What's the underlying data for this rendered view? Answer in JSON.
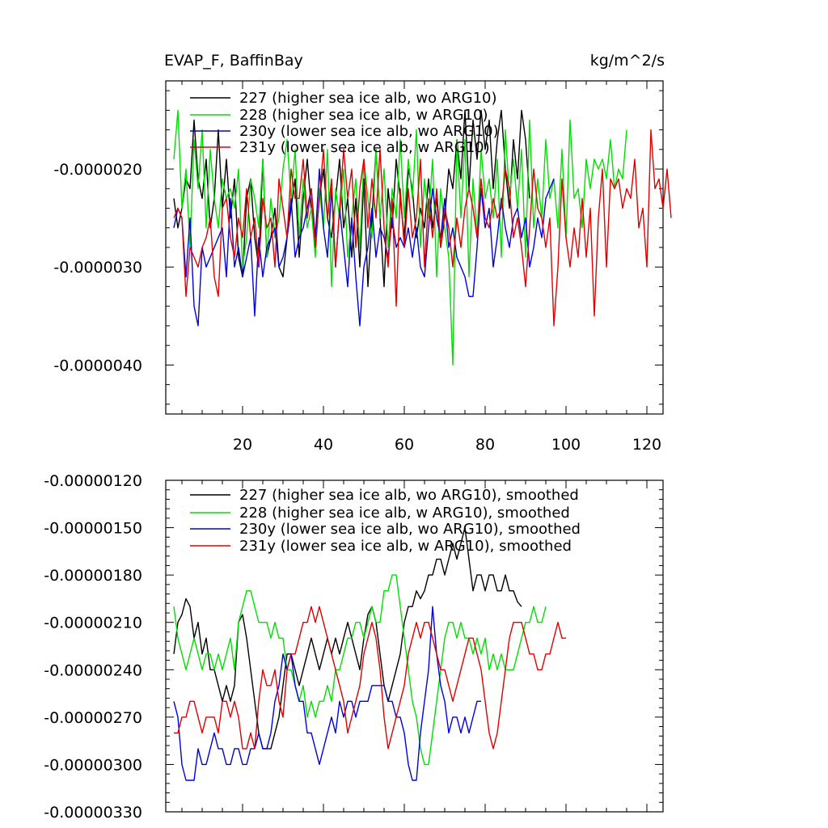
{
  "chart_data": [
    {
      "type": "line",
      "title_left": "EVAP_F, BaffinBay",
      "title_right": "kg/m^2/s",
      "xlim": [
        1,
        124
      ],
      "ylim": [
        -4.5e-06,
        -1.1e-06
      ],
      "x_ticks": [
        20,
        40,
        60,
        80,
        100,
        120
      ],
      "x_tick_labels": [
        "20",
        "40",
        "60",
        "80",
        "100",
        "120"
      ],
      "y_ticks": [
        -2e-06,
        -3e-06,
        -4e-06
      ],
      "y_tick_labels": [
        "-0.0000020",
        "-0.0000030",
        "-0.0000040"
      ],
      "legend": [
        "227 (higher sea ice alb, wo ARG10)",
        "228 (higher sea ice alb, w ARG10)",
        "230y (lower sea ice alb, wo ARG10)",
        "231y (lower sea ice alb, w ARG10)"
      ],
      "colors": [
        "#000000",
        "#00e000",
        "#0000e0",
        "#e00000"
      ],
      "series": [
        {
          "name": "227",
          "x_start": 3,
          "values": [
            -2.3e-06,
            -2.6e-06,
            -2.4e-06,
            -2.1e-06,
            -2.2e-06,
            -1.5e-06,
            -2.1e-06,
            -2.3e-06,
            -1.9e-06,
            -2.6e-06,
            -2.3e-06,
            -1.6e-06,
            -2.4e-06,
            -1.9e-06,
            -2.5e-06,
            -2.1e-06,
            -2.9e-06,
            -3.1e-06,
            -2.3e-06,
            -2.1e-06,
            -2.7e-06,
            -3e-06,
            -1.9e-06,
            -2.9e-06,
            -2.7e-06,
            -2.4e-06,
            -3e-06,
            -3.1e-06,
            -2.7e-06,
            -2.4e-06,
            -2.1e-06,
            -2.9e-06,
            -2.3e-06,
            -1.9e-06,
            -2.4e-06,
            -2.7e-06,
            -2.3e-06,
            -2e-06,
            -2.5e-06,
            -2.7e-06,
            -2.3e-06,
            -1.9e-06,
            -2.6e-06,
            -2.3e-06,
            -2.9e-06,
            -2.3e-06,
            -3e-06,
            -2.1e-06,
            -3.2e-06,
            -2.5e-06,
            -1.8e-06,
            -2.5e-06,
            -3.2e-06,
            -2.2e-06,
            -2.6e-06,
            -1.9e-06,
            -2.3e-06,
            -2.7e-06,
            -2e-06,
            -2.2e-06,
            -2.7e-06,
            -2.4e-06,
            -2.6e-06,
            -2.1e-06,
            -2.6e-06,
            -2.3e-06,
            -2.8e-06,
            -2.5e-06,
            -2e-06,
            -2.2e-06,
            -1.7e-06,
            -2.1e-06,
            -1.4e-06,
            -2.2e-06,
            -1.5e-06,
            -1.9e-06,
            -1.4e-06,
            -1.8e-06,
            -1.5e-06,
            -2.2e-06,
            -1.7e-06,
            -1.4e-06,
            -2e-06,
            -2.4e-06,
            -1.7e-06,
            -2.1e-06,
            -1.4e-06,
            -1.7e-06,
            -2.3e-06
          ]
        },
        {
          "name": "228",
          "x_start": 3,
          "values": [
            -1.9e-06,
            -1.4e-06,
            -2.4e-06,
            -2e-06,
            -2.8e-06,
            -1.7e-06,
            -2.2e-06,
            -1.6e-06,
            -2.6e-06,
            -1.8e-06,
            -2.3e-06,
            -2.6e-06,
            -2.1e-06,
            -2.3e-06,
            -2.2e-06,
            -2.4e-06,
            -2e-06,
            -3e-06,
            -2.7e-06,
            -2.1e-06,
            -2.3e-06,
            -2.6e-06,
            -1.9e-06,
            -2.9e-06,
            -2.3e-06,
            -2.7e-06,
            -2.5e-06,
            -2e-06,
            -1.7e-06,
            -2.3e-06,
            -1.8e-06,
            -2.7e-06,
            -2.1e-06,
            -2.6e-06,
            -2.4e-06,
            -2.9e-06,
            -2.2e-06,
            -2.6e-06,
            -1.8e-06,
            -3.2e-06,
            -2.2e-06,
            -2.5e-06,
            -2e-06,
            -2.9e-06,
            -2.5e-06,
            -2.1e-06,
            -2.8e-06,
            -1.9e-06,
            -2.3e-06,
            -2.7e-06,
            -1.8e-06,
            -2.5e-06,
            -2e-06,
            -2.8e-06,
            -2.2e-06,
            -2.5e-06,
            -1.7e-06,
            -2.5e-06,
            -1.9e-06,
            -2.3e-06,
            -1.6e-06,
            -2.8e-06,
            -2.1e-06,
            -2.5e-06,
            -1.9e-06,
            -3.1e-06,
            -2.2e-06,
            -2.6e-06,
            -2.9e-06,
            -4e-06,
            -1.7e-06,
            -2.5e-06,
            -1.7e-06,
            -3.1e-06,
            -2.1e-06,
            -2.7e-06,
            -1.8e-06,
            -2.3e-06,
            -2.1e-06,
            -2.5e-06,
            -1.9e-06,
            -2.9e-06,
            -1.6e-06,
            -2.3e-06,
            -1.9e-06,
            -2.4e-06,
            -1.8e-06,
            -2.9e-06,
            -1.5e-06,
            -2.6e-06,
            -2.1e-06,
            -2.5e-06,
            -1.7e-06,
            -2.3e-06,
            -2.1e-06,
            -2.6e-06,
            -1.8e-06,
            -2.7e-06,
            -1.5e-06,
            -2.3e-06,
            -2.2e-06,
            -2.6e-06,
            -1.9e-06,
            -2.2e-06,
            -1.9e-06,
            -2e-06,
            -1.9e-06,
            -2.1e-06,
            -1.7e-06,
            -2.2e-06,
            -2e-06,
            -2.1e-06,
            -1.6e-06
          ]
        },
        {
          "name": "230y",
          "x_start": 3,
          "values": [
            -2.6e-06,
            -2.4e-06,
            -2.5e-06,
            -3.1e-06,
            -2.5e-06,
            -3.4e-06,
            -3.6e-06,
            -2.8e-06,
            -3e-06,
            -2.9e-06,
            -2.8e-06,
            -2.7e-06,
            -2.6e-06,
            -3.1e-06,
            -2.3e-06,
            -3e-06,
            -2.8e-06,
            -3.1e-06,
            -2.9e-06,
            -2.7e-06,
            -3.5e-06,
            -2.7e-06,
            -3.1e-06,
            -2.8e-06,
            -2.7e-06,
            -2.6e-06,
            -3e-06,
            -2.9e-06,
            -2.7e-06,
            -2.3e-06,
            -2.9e-06,
            -2.7e-06,
            -2.6e-06,
            -2.4e-06,
            -2.2e-06,
            -2.7e-06,
            -2e-06,
            -2.6e-06,
            -2.9e-06,
            -2.2e-06,
            -3e-06,
            -2.4e-06,
            -2.8e-06,
            -3.2e-06,
            -2.5e-06,
            -3.1e-06,
            -3.6e-06,
            -3e-06,
            -2.8e-06,
            -2.4e-06,
            -2.9e-06,
            -2.6e-06,
            -2.7e-06,
            -2.9e-06,
            -2.5e-06,
            -2.8e-06,
            -2.7e-06,
            -2.8e-06,
            -2.6e-06,
            -2.9e-06,
            -2.6e-06,
            -3e-06,
            -3.1e-06,
            -2.6e-06,
            -2.2e-06,
            -2.5e-06,
            -2.7e-06,
            -2.3e-06,
            -2.8e-06,
            -2.6e-06,
            -2.9e-06,
            -3e-06,
            -3.1e-06,
            -3.3e-06,
            -3.3e-06,
            -2.8e-06,
            -2.2e-06,
            -2.6e-06,
            -2.4e-06,
            -3e-06,
            -2.7e-06,
            -2.3e-06,
            -2.6e-06,
            -2.8e-06,
            -2.5e-06,
            -2.4e-06,
            -2.7e-06,
            -2.5e-06,
            -3e-06,
            -2.8e-06,
            -2.5e-06,
            -2.7e-06,
            -2.3e-06,
            -2.2e-06,
            -2.1e-06
          ]
        },
        {
          "name": "231y",
          "x_start": 3,
          "values": [
            -2.5e-06,
            -2.4e-06,
            -2.5e-06,
            -3.3e-06,
            -2.8e-06,
            -2.9e-06,
            -3e-06,
            -2.8e-06,
            -2.7e-06,
            -2.5e-06,
            -3.1e-06,
            -3.3e-06,
            -2.4e-06,
            -2.3e-06,
            -2.7e-06,
            -2.9e-06,
            -2.5e-06,
            -2.7e-06,
            -2.2e-06,
            -2.7e-06,
            -2.5e-06,
            -3e-06,
            -2.3e-06,
            -2.6e-06,
            -2.5e-06,
            -3e-06,
            -2.1e-06,
            -2.4e-06,
            -2.7e-06,
            -2e-06,
            -2.3e-06,
            -2.3e-06,
            -1.9e-06,
            -2.5e-06,
            -2.2e-06,
            -2.8e-06,
            -2.3e-06,
            -1.8e-06,
            -2.5e-06,
            -2.1e-06,
            -3e-06,
            -2.4e-06,
            -1.8e-06,
            -2.3e-06,
            -2e-06,
            -2.8e-06,
            -2.2e-06,
            -1.9e-06,
            -2.6e-06,
            -2.1e-06,
            -2.5e-06,
            -1.8e-06,
            -2.6e-06,
            -3e-06,
            -2.3e-06,
            -3.4e-06,
            -2.2e-06,
            -2.8e-06,
            -2.2e-06,
            -2.7e-06,
            -2.5e-06,
            -1.9e-06,
            -3e-06,
            -2.3e-06,
            -2.7e-06,
            -2.2e-06,
            -2.8e-06,
            -2.4e-06,
            -2.6e-06,
            -3e-06,
            -2.5e-06,
            -2.8e-06,
            -2.4e-06,
            -2.2e-06,
            -2.4e-06,
            -2.7e-06,
            -2.1e-06,
            -2.5e-06,
            -2.6e-06,
            -2.3e-06,
            -2.5e-06,
            -2.4e-06,
            -2e-06,
            -2.2e-06,
            -2.7e-06,
            -2.5e-06,
            -2.8e-06,
            -3.2e-06,
            -2.6e-06,
            -2e-06,
            -2.4e-06,
            -2.5e-06,
            -2.8e-06,
            -2.5e-06,
            -3.6e-06,
            -3e-06,
            -2.1e-06,
            -2.7e-06,
            -3e-06,
            -2.6e-06,
            -2.9e-06,
            -2.3e-06,
            -2.9e-06,
            -2.4e-06,
            -3.5e-06,
            -2.5e-06,
            -2e-06,
            -3e-06,
            -2.1e-06,
            -2.2e-06,
            -2.1e-06,
            -2.4e-06,
            -2.2e-06,
            -2.3e-06,
            -1.9e-06,
            -2.6e-06,
            -2.4e-06,
            -3e-06,
            -1.6e-06,
            -2.2e-06,
            -2.1e-06,
            -2.4e-06,
            -2e-06,
            -2.5e-06
          ]
        }
      ]
    },
    {
      "type": "line",
      "xlim": [
        1,
        124
      ],
      "ylim": [
        -3.3e-06,
        -1.2e-06
      ],
      "x_ticks": [
        20,
        40,
        60,
        80,
        100,
        120
      ],
      "y_ticks": [
        -1.2e-06,
        -1.5e-06,
        -1.8e-06,
        -2.1e-06,
        -2.4e-06,
        -2.7e-06,
        -3e-06,
        -3.3e-06
      ],
      "y_tick_labels": [
        "-0.00000120",
        "-0.00000150",
        "-0.00000180",
        "-0.00000210",
        "-0.00000240",
        "-0.00000270",
        "-0.00000300",
        "-0.00000330"
      ],
      "legend": [
        "227 (higher sea ice alb, wo ARG10), smoothed",
        "228 (higher sea ice alb, w ARG10), smoothed",
        "230y (lower sea ice alb, wo ARG10), smoothed",
        "231y (lower sea ice alb, w ARG10), smoothed"
      ],
      "colors": [
        "#000000",
        "#00e000",
        "#0000e0",
        "#e00000"
      ],
      "series": [
        {
          "name": "227 smoothed",
          "x_start": 3,
          "values": [
            -2.3e-06,
            -2.1e-06,
            -2.05e-06,
            -1.95e-06,
            -2e-06,
            -2.2e-06,
            -2.1e-06,
            -2.3e-06,
            -2.2e-06,
            -2.4e-06,
            -2.4e-06,
            -2.5e-06,
            -2.6e-06,
            -2.5e-06,
            -2.6e-06,
            -2.5e-06,
            -2.1e-06,
            -2.05e-06,
            -2.2e-06,
            -2.4e-06,
            -2.6e-06,
            -2.8e-06,
            -2.9e-06,
            -2.9e-06,
            -2.9e-06,
            -2.8e-06,
            -2.7e-06,
            -2.5e-06,
            -2.3e-06,
            -2.3e-06,
            -2.4e-06,
            -2.5e-06,
            -2.4e-06,
            -2.3e-06,
            -2.2e-06,
            -2.3e-06,
            -2.4e-06,
            -2.3e-06,
            -2.2e-06,
            -2.3e-06,
            -2.2e-06,
            -2.3e-06,
            -2.2e-06,
            -2.1e-06,
            -2.2e-06,
            -2.3e-06,
            -2.4e-06,
            -2.2e-06,
            -2.05e-06,
            -2e-06,
            -2.1e-06,
            -2.3e-06,
            -2.5e-06,
            -2.6e-06,
            -2.5e-06,
            -2.4e-06,
            -2.3e-06,
            -2.1e-06,
            -2e-06,
            -2e-06,
            -1.9e-06,
            -1.95e-06,
            -1.9e-06,
            -1.8e-06,
            -1.8e-06,
            -1.7e-06,
            -1.7e-06,
            -1.8e-06,
            -1.7e-06,
            -1.6e-06,
            -1.7e-06,
            -1.6e-06,
            -1.5e-06,
            -1.7e-06,
            -1.9e-06,
            -1.8e-06,
            -1.8e-06,
            -1.9e-06,
            -1.8e-06,
            -1.8e-06,
            -1.9e-06,
            -1.9e-06,
            -1.8e-06,
            -1.9e-06,
            -1.9e-06,
            -1.97e-06,
            -2e-06
          ]
        },
        {
          "name": "228 smoothed",
          "x_start": 3,
          "values": [
            -2e-06,
            -2.2e-06,
            -2.3e-06,
            -2.4e-06,
            -2.3e-06,
            -2.2e-06,
            -2.3e-06,
            -2.4e-06,
            -2.3e-06,
            -2.3e-06,
            -2.4e-06,
            -2.3e-06,
            -2.4e-06,
            -2.3e-06,
            -2.2e-06,
            -2.4e-06,
            -2.1e-06,
            -2e-06,
            -1.9e-06,
            -1.9e-06,
            -2e-06,
            -2.1e-06,
            -2.1e-06,
            -2.1e-06,
            -2.2e-06,
            -2.1e-06,
            -2.2e-06,
            -2.2e-06,
            -2.4e-06,
            -2.4e-06,
            -2.5e-06,
            -2.6e-06,
            -2.5e-06,
            -2.7e-06,
            -2.6e-06,
            -2.7e-06,
            -2.6e-06,
            -2.6e-06,
            -2.5e-06,
            -2.6e-06,
            -2.4e-06,
            -2.4e-06,
            -2.3e-06,
            -2.2e-06,
            -2.2e-06,
            -2.1e-06,
            -2.1e-06,
            -2.2e-06,
            -2.1e-06,
            -2e-06,
            -2.1e-06,
            -2.1e-06,
            -1.9e-06,
            -1.9e-06,
            -1.8e-06,
            -1.8e-06,
            -2e-06,
            -2.2e-06,
            -2.4e-06,
            -2.6e-06,
            -2.7e-06,
            -2.9e-06,
            -3e-06,
            -3e-06,
            -2.8e-06,
            -2.6e-06,
            -2.4e-06,
            -2.2e-06,
            -2.1e-06,
            -2.1e-06,
            -2.2e-06,
            -2.1e-06,
            -2.2e-06,
            -2.2e-06,
            -2.3e-06,
            -2.2e-06,
            -2.3e-06,
            -2.2e-06,
            -2.4e-06,
            -2.3e-06,
            -2.4e-06,
            -2.3e-06,
            -2.4e-06,
            -2.4e-06,
            -2.4e-06,
            -2.3e-06,
            -2.2e-06,
            -2.1e-06,
            -2.1e-06,
            -2e-06,
            -2.1e-06,
            -2.1e-06,
            -2e-06
          ]
        },
        {
          "name": "230y smoothed",
          "x_start": 3,
          "values": [
            -2.6e-06,
            -2.7e-06,
            -3e-06,
            -3.1e-06,
            -3.1e-06,
            -3.1e-06,
            -2.9e-06,
            -3e-06,
            -3e-06,
            -2.9e-06,
            -2.8e-06,
            -2.9e-06,
            -2.9e-06,
            -3e-06,
            -3e-06,
            -2.9e-06,
            -2.9e-06,
            -3e-06,
            -3e-06,
            -2.9e-06,
            -2.9e-06,
            -2.8e-06,
            -2.9e-06,
            -2.9e-06,
            -2.8e-06,
            -2.6e-06,
            -2.5e-06,
            -2.3e-06,
            -2.4e-06,
            -2.3e-06,
            -2.5e-06,
            -2.6e-06,
            -2.6e-06,
            -2.8e-06,
            -2.8e-06,
            -2.9e-06,
            -3e-06,
            -2.9e-06,
            -2.8e-06,
            -2.7e-06,
            -2.8e-06,
            -2.6e-06,
            -2.7e-06,
            -2.6e-06,
            -2.6e-06,
            -2.7e-06,
            -2.6e-06,
            -2.6e-06,
            -2.6e-06,
            -2.5e-06,
            -2.5e-06,
            -2.5e-06,
            -2.5e-06,
            -2.6e-06,
            -2.6e-06,
            -2.7e-06,
            -2.7e-06,
            -2.8e-06,
            -3e-06,
            -3.1e-06,
            -3.1e-06,
            -2.8e-06,
            -2.6e-06,
            -2.4e-06,
            -2e-06,
            -2.3e-06,
            -2.5e-06,
            -2.6e-06,
            -2.8e-06,
            -2.7e-06,
            -2.7e-06,
            -2.8e-06,
            -2.7e-06,
            -2.8e-06,
            -2.7e-06,
            -2.6e-06,
            -2.6e-06
          ]
        },
        {
          "name": "231y smoothed",
          "x_start": 3,
          "values": [
            -2.8e-06,
            -2.8e-06,
            -2.7e-06,
            -2.7e-06,
            -2.6e-06,
            -2.6e-06,
            -2.7e-06,
            -2.8e-06,
            -2.7e-06,
            -2.7e-06,
            -2.7e-06,
            -2.8e-06,
            -2.6e-06,
            -2.6e-06,
            -2.7e-06,
            -2.6e-06,
            -2.7e-06,
            -2.9e-06,
            -2.9e-06,
            -2.8e-06,
            -2.9e-06,
            -2.6e-06,
            -2.4e-06,
            -2.5e-06,
            -2.5e-06,
            -2.4e-06,
            -2.6e-06,
            -2.7e-06,
            -2.4e-06,
            -2.3e-06,
            -2.3e-06,
            -2.2e-06,
            -2.1e-06,
            -2.1e-06,
            -2e-06,
            -2.1e-06,
            -2e-06,
            -2.1e-06,
            -2.2e-06,
            -2.3e-06,
            -2.4e-06,
            -2.5e-06,
            -2.6e-06,
            -2.8e-06,
            -2.7e-06,
            -2.6e-06,
            -2.5e-06,
            -2.3e-06,
            -2.2e-06,
            -2.1e-06,
            -2.2e-06,
            -2.4e-06,
            -2.7e-06,
            -2.9e-06,
            -2.8e-06,
            -2.7e-06,
            -2.6e-06,
            -2.5e-06,
            -2.3e-06,
            -2.2e-06,
            -2.1e-06,
            -2.2e-06,
            -2.1e-06,
            -2.1e-06,
            -2.2e-06,
            -2.3e-06,
            -2.4e-06,
            -2.4e-06,
            -2.5e-06,
            -2.6e-06,
            -2.5e-06,
            -2.4e-06,
            -2.3e-06,
            -2.2e-06,
            -2.2e-06,
            -2.3e-06,
            -2.4e-06,
            -2.6e-06,
            -2.8e-06,
            -2.9e-06,
            -2.8e-06,
            -2.6e-06,
            -2.4e-06,
            -2.2e-06,
            -2.1e-06,
            -2.1e-06,
            -2.1e-06,
            -2.2e-06,
            -2.3e-06,
            -2.3e-06,
            -2.4e-06,
            -2.4e-06,
            -2.3e-06,
            -2.3e-06,
            -2.2e-06,
            -2.1e-06,
            -2.2e-06,
            -2.2e-06
          ]
        }
      ]
    }
  ]
}
